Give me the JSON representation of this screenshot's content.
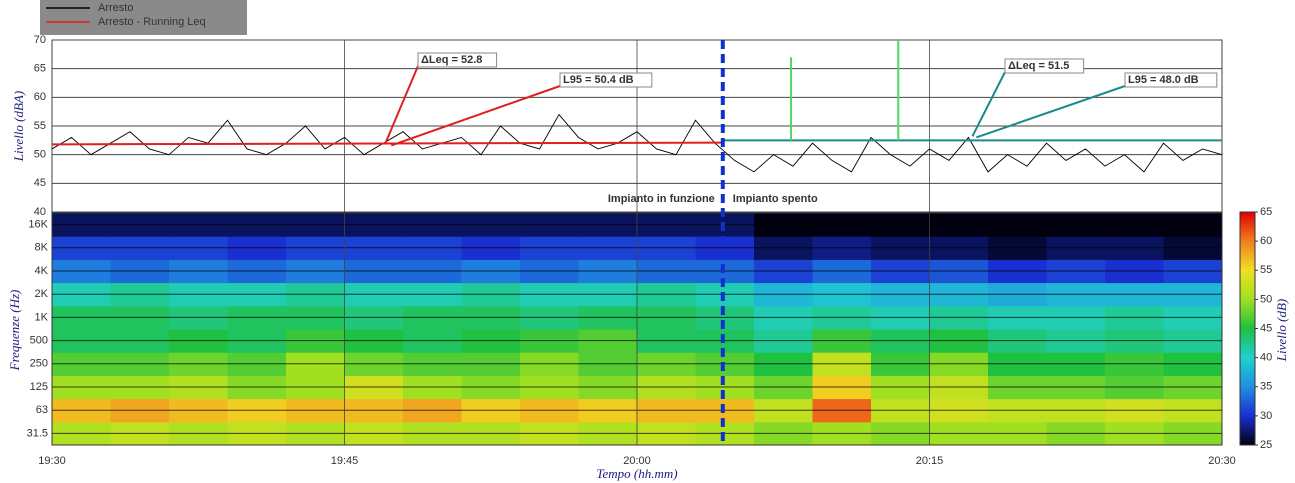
{
  "chart_data": [
    {
      "type": "line",
      "ylabel": "Livello (dBA)",
      "ylim": [
        40,
        70
      ],
      "yticks": [
        40,
        45,
        50,
        55,
        60,
        65,
        70
      ],
      "xlim": [
        0,
        60
      ],
      "grid": true,
      "legend": "top-left",
      "series": [
        {
          "name": "Arresto",
          "color": "#000000",
          "x": [
            0,
            1,
            2,
            3,
            4,
            5,
            6,
            7,
            8,
            9,
            10,
            11,
            12,
            13,
            14,
            15,
            16,
            17,
            18,
            19,
            20,
            21,
            22,
            23,
            24,
            25,
            26,
            27,
            28,
            29,
            30,
            31,
            32,
            33,
            34,
            35,
            36,
            37,
            38,
            39,
            40,
            41,
            42,
            43,
            44,
            45,
            46,
            47,
            48,
            49,
            50,
            51,
            52,
            53,
            54,
            55,
            56,
            57,
            58,
            59,
            60
          ],
          "values": [
            51,
            53,
            50,
            52,
            54,
            51,
            50,
            53,
            52,
            56,
            51,
            50,
            52,
            55,
            51,
            53,
            50,
            52,
            54,
            51,
            52,
            53,
            50,
            55,
            52,
            51,
            57,
            53,
            51,
            52,
            54,
            51,
            50,
            56,
            52,
            49,
            47,
            50,
            48,
            52,
            49,
            47,
            53,
            50,
            48,
            51,
            49,
            53,
            47,
            50,
            48,
            52,
            49,
            51,
            48,
            50,
            47,
            52,
            49,
            51,
            50
          ]
        },
        {
          "name": "Arresto - Running Leq",
          "color": "#e02020",
          "x": [
            0,
            34.4
          ],
          "values": [
            51.8,
            52.1
          ]
        }
      ],
      "l95_line": {
        "color": "#1a8a8a",
        "x": [
          34.4,
          60
        ],
        "values": [
          52.5,
          52.5
        ]
      },
      "event_peaks": {
        "color": "#4cd964",
        "x": [
          37.9,
          43.4
        ],
        "values": [
          67,
          70
        ]
      },
      "divider_x": 34.4,
      "divider_color": "#1030d0",
      "annotations": [
        {
          "text": "ΔLeq = 52.8",
          "color": "#e02020",
          "line_color": "#e02020",
          "x": 17.1,
          "y": 52.0
        },
        {
          "text": "L95 = 50.4 dB",
          "color": "#1030c0",
          "line_color": "#e02020",
          "x": 17.4,
          "y": 51.6
        },
        {
          "text": "ΔLeq = 51.5",
          "color": "#e02020",
          "line_color": "#1a8a8a",
          "x": 47.2,
          "y": 53.2
        },
        {
          "text": "L95 = 48.0 dB",
          "color": "#1030c0",
          "line_color": "#1a8a8a",
          "x": 47.4,
          "y": 53.0
        }
      ],
      "phase_labels": [
        {
          "text": "Impianto in funzione",
          "color": "#e02020"
        },
        {
          "text": "Impianto spento",
          "color": "#1a8a2a"
        }
      ]
    },
    {
      "type": "heatmap",
      "ylabel": "Frequenze (Hz)",
      "xlabel": "Tempo (hh.mm)",
      "xlim": [
        0,
        60
      ],
      "xticks": [
        {
          "value": 0,
          "label": "19:30"
        },
        {
          "value": 15,
          "label": "19:45"
        },
        {
          "value": 30,
          "label": "20:00"
        },
        {
          "value": 45,
          "label": "20:15"
        },
        {
          "value": 60,
          "label": "20:30"
        }
      ],
      "bins": [
        0,
        3,
        6,
        9,
        12,
        15,
        18,
        21,
        24,
        27,
        30,
        33,
        36,
        39,
        42,
        45,
        48,
        51,
        54,
        57,
        60
      ],
      "categories": [
        "31.5",
        "63",
        "125",
        "250",
        "500",
        "1K",
        "2K",
        "4K",
        "8K",
        "16K"
      ],
      "values": [
        [
          51,
          52,
          51,
          52,
          51,
          52,
          51,
          51,
          52,
          51,
          52,
          51,
          49,
          50,
          49,
          50,
          50,
          49,
          50,
          49
        ],
        [
          57,
          58,
          57,
          56,
          57,
          57,
          58,
          56,
          57,
          56,
          57,
          57,
          52,
          61,
          52,
          53,
          52,
          52,
          53,
          52
        ],
        [
          50,
          50,
          51,
          49,
          50,
          53,
          50,
          49,
          50,
          49,
          51,
          50,
          48,
          56,
          50,
          52,
          48,
          48,
          47,
          48
        ],
        [
          47,
          47,
          48,
          47,
          50,
          48,
          47,
          47,
          49,
          47,
          48,
          47,
          45,
          52,
          46,
          49,
          45,
          45,
          46,
          45
        ],
        [
          44,
          44,
          45,
          44,
          46,
          45,
          44,
          45,
          46,
          47,
          44,
          44,
          42,
          46,
          44,
          45,
          43,
          42,
          43,
          42
        ],
        [
          44,
          44,
          43,
          44,
          44,
          43,
          44,
          44,
          43,
          44,
          44,
          43,
          41,
          42,
          41,
          42,
          41,
          41,
          42,
          41
        ],
        [
          41,
          42,
          41,
          41,
          42,
          41,
          41,
          42,
          41,
          41,
          42,
          41,
          38,
          39,
          38,
          38,
          37,
          38,
          38,
          38
        ],
        [
          34,
          33,
          34,
          33,
          34,
          33,
          33,
          34,
          33,
          34,
          33,
          33,
          31,
          33,
          31,
          32,
          30,
          31,
          30,
          31
        ],
        [
          31,
          31,
          31,
          30,
          31,
          31,
          31,
          30,
          31,
          31,
          31,
          30,
          27,
          28,
          27,
          27,
          26,
          27,
          27,
          26
        ],
        [
          27,
          27,
          27,
          27,
          27,
          27,
          27,
          27,
          27,
          27,
          27,
          27,
          25,
          25,
          25,
          25,
          25,
          25,
          25,
          25
        ]
      ],
      "colorbar": {
        "label": "Livello (dB)",
        "lim": [
          25,
          65
        ],
        "ticks": [
          25,
          30,
          35,
          40,
          45,
          50,
          55,
          60,
          65
        ],
        "colors": [
          "#000010",
          "#1a2fd0",
          "#1f90e0",
          "#20d0d0",
          "#20c040",
          "#a0e020",
          "#f0e020",
          "#f08020",
          "#e00000"
        ]
      }
    }
  ]
}
